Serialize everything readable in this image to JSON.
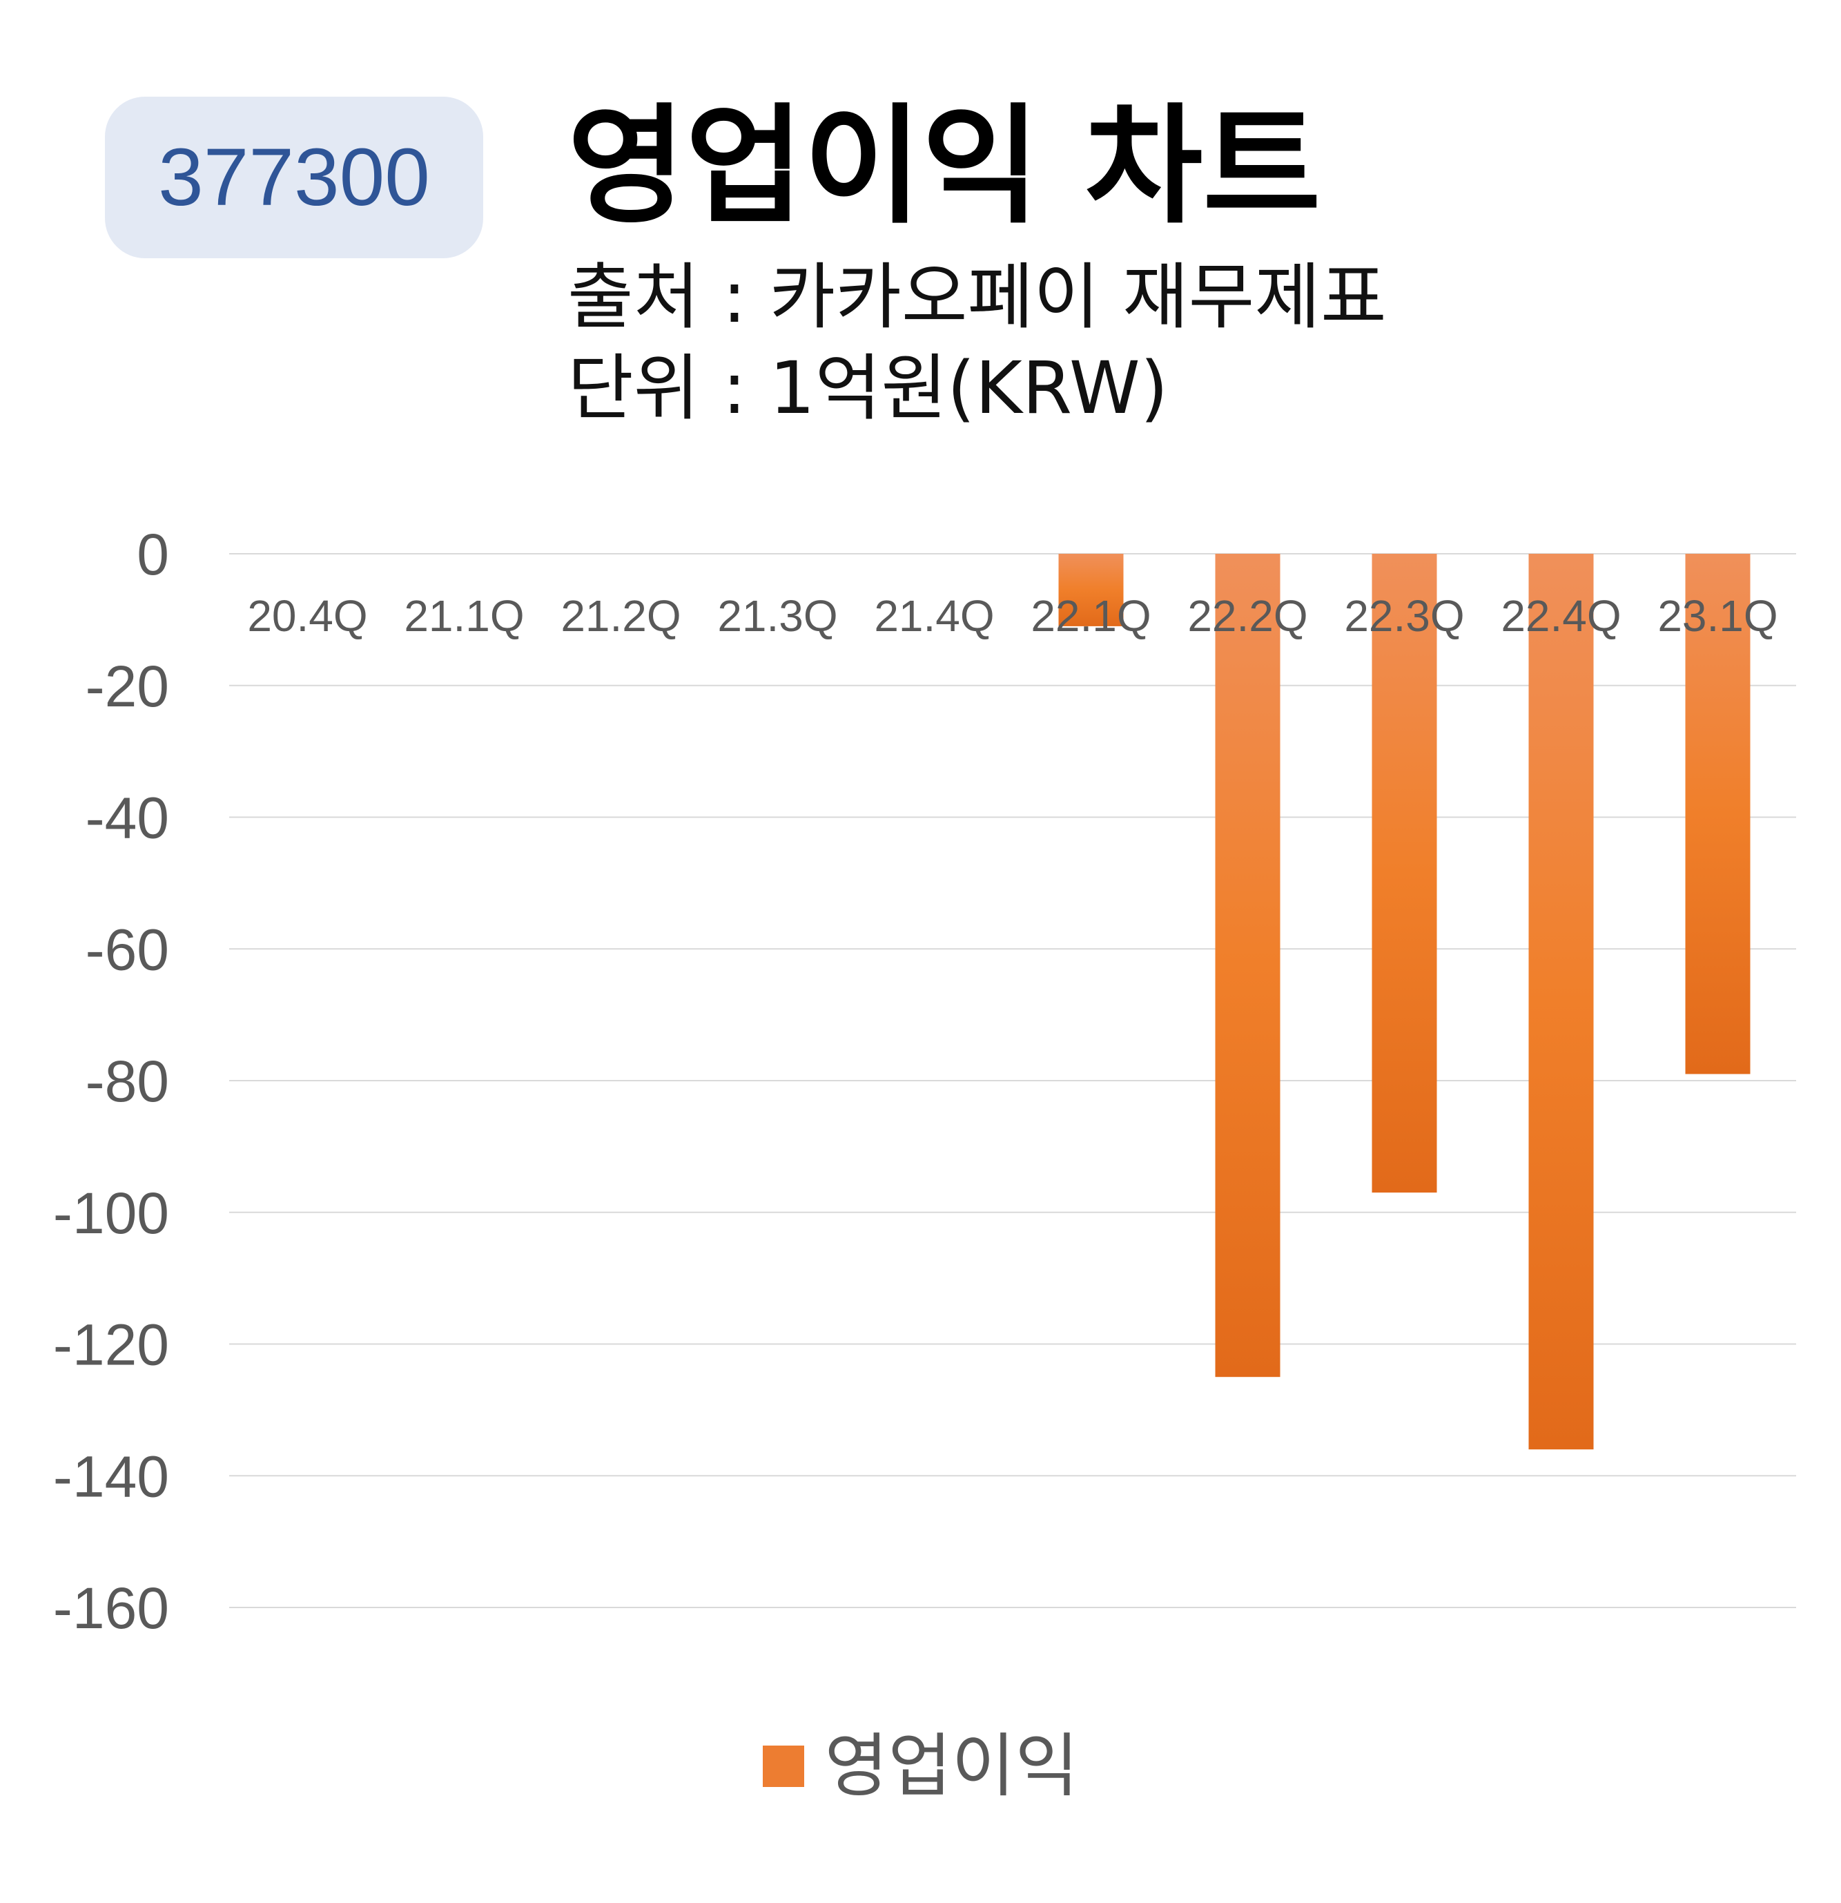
{
  "header": {
    "stock_code": "377300",
    "title": "영업이익 차트",
    "source_line": "출처 : 카카오페이 재무제표",
    "unit_line": "단위 : 1억원(KRW)"
  },
  "colors": {
    "bar_top": "#f0905a",
    "bar_mid": "#f07f2a",
    "bar_bottom": "#e26a1a",
    "badge_bg": "#e3e9f4",
    "badge_text": "#2f5597",
    "gridline": "#d9d9d9",
    "axis_text": "#595959"
  },
  "chart_data": {
    "type": "bar",
    "title": "영업이익 차트",
    "xlabel": "",
    "ylabel": "",
    "categories": [
      "20.4Q",
      "21.1Q",
      "21.2Q",
      "21.3Q",
      "21.4Q",
      "22.1Q",
      "22.2Q",
      "22.3Q",
      "22.4Q",
      "23.1Q"
    ],
    "series": [
      {
        "name": "영업이익",
        "values": [
          0,
          0,
          0,
          0,
          0,
          -11,
          -125,
          -97,
          -136,
          -79
        ]
      }
    ],
    "ylim": [
      -160,
      0
    ],
    "yticks": [
      0,
      -20,
      -40,
      -60,
      -80,
      -100,
      -120,
      -140,
      -160
    ],
    "grid": true,
    "legend": "bottom"
  }
}
